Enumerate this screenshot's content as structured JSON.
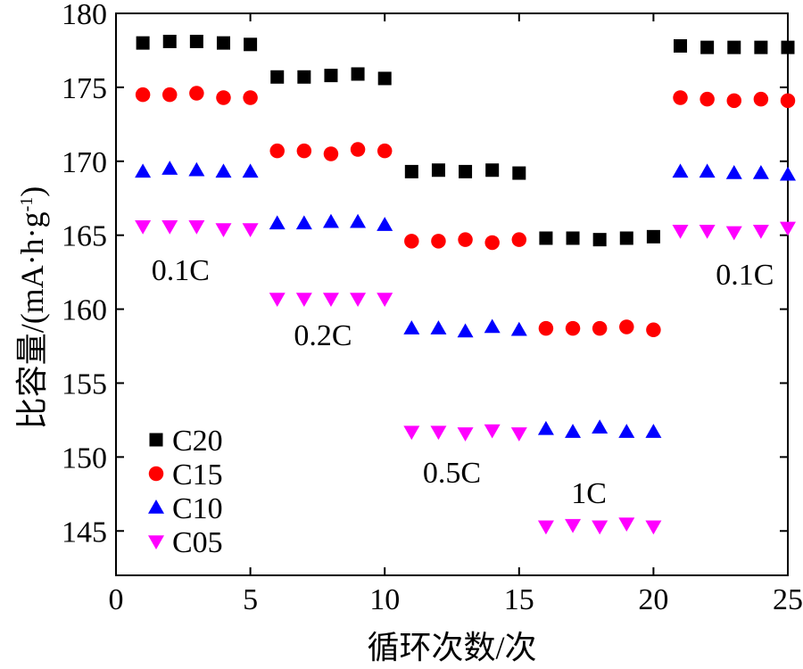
{
  "chart_data": {
    "type": "scatter",
    "xlabel": "循环次数/次",
    "ylabel": "比容量/(mA·h·g-1)",
    "ylabel_base": "比容量/(mA·h·g",
    "ylabel_sup": "-1",
    "ylabel_end": ")",
    "xlim": [
      0,
      25
    ],
    "ylim": [
      142,
      180
    ],
    "xticks": [
      0,
      5,
      10,
      15,
      20,
      25
    ],
    "yticks": [
      145,
      150,
      155,
      160,
      165,
      170,
      175,
      180
    ],
    "grid": false,
    "legend_position": "bottom-left",
    "x": [
      1,
      2,
      3,
      4,
      5,
      6,
      7,
      8,
      9,
      10,
      11,
      12,
      13,
      14,
      15,
      16,
      17,
      18,
      19,
      20,
      21,
      22,
      23,
      24,
      25
    ],
    "series": [
      {
        "name": "C20",
        "marker": "square",
        "color": "#000000",
        "values": [
          178.0,
          178.1,
          178.1,
          178.0,
          177.9,
          175.7,
          175.7,
          175.8,
          175.9,
          175.6,
          169.3,
          169.4,
          169.3,
          169.4,
          169.2,
          164.8,
          164.8,
          164.7,
          164.8,
          164.9,
          177.8,
          177.7,
          177.7,
          177.7,
          177.7
        ]
      },
      {
        "name": "C15",
        "marker": "circle",
        "color": "#ff0000",
        "values": [
          174.5,
          174.5,
          174.6,
          174.3,
          174.3,
          170.7,
          170.7,
          170.5,
          170.8,
          170.7,
          164.6,
          164.6,
          164.7,
          164.5,
          164.7,
          158.7,
          158.7,
          158.7,
          158.8,
          158.6,
          174.3,
          174.2,
          174.1,
          174.2,
          174.1
        ]
      },
      {
        "name": "C10",
        "marker": "triangle-up",
        "color": "#0000ff",
        "values": [
          169.3,
          169.5,
          169.4,
          169.3,
          169.3,
          165.8,
          165.8,
          165.9,
          165.9,
          165.7,
          158.7,
          158.7,
          158.5,
          158.8,
          158.6,
          151.9,
          151.7,
          152.0,
          151.7,
          151.7,
          169.3,
          169.3,
          169.2,
          169.2,
          169.1
        ]
      },
      {
        "name": "C05",
        "marker": "triangle-down",
        "color": "#ff00ff",
        "values": [
          165.6,
          165.6,
          165.6,
          165.4,
          165.4,
          160.7,
          160.7,
          160.7,
          160.7,
          160.7,
          151.7,
          151.7,
          151.6,
          151.8,
          151.6,
          145.3,
          145.4,
          145.3,
          145.5,
          145.3,
          165.3,
          165.3,
          165.2,
          165.3,
          165.5
        ]
      }
    ],
    "annotations": [
      {
        "text": "0.1C",
        "x": 2.4,
        "y": 162.7
      },
      {
        "text": "0.2C",
        "x": 7.7,
        "y": 158.3
      },
      {
        "text": "0.5C",
        "x": 12.5,
        "y": 149.0
      },
      {
        "text": "1C",
        "x": 17.6,
        "y": 147.6
      },
      {
        "text": "0.1C",
        "x": 23.4,
        "y": 162.4
      }
    ]
  }
}
